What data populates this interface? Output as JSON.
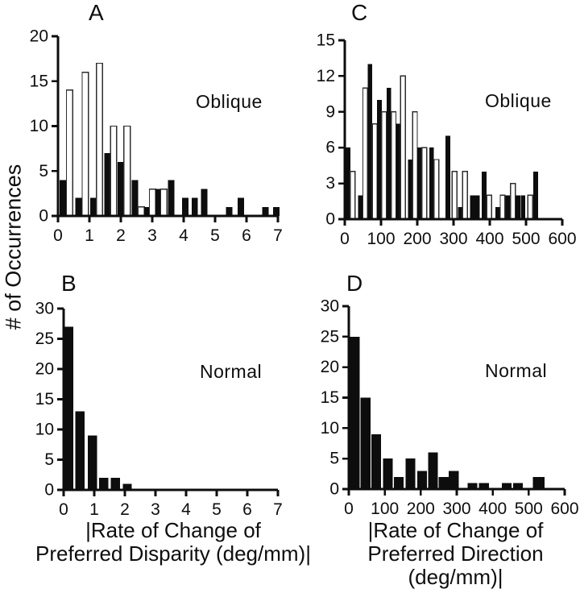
{
  "figure": {
    "y_axis_label": "# of Occurrences",
    "colors": {
      "bar_black": "#0d0d0d",
      "bar_white_fill": "#ffffff",
      "bar_white_outline": "#2e2e2e",
      "axis": "#0d0d0d",
      "background": "#ffffff"
    }
  },
  "chart_data": [
    {
      "type": "bar",
      "panel_label": "A",
      "condition": "Oblique",
      "xlim": [
        0,
        7
      ],
      "xticks": [
        0,
        1,
        2,
        3,
        4,
        5,
        6,
        7
      ],
      "ylim": [
        0,
        20
      ],
      "yticks": [
        0,
        5,
        10,
        15,
        20
      ],
      "bar_width_units": 0.2,
      "grid": false,
      "bars": [
        {
          "x": 0.05,
          "h": 4,
          "fill": "black"
        },
        {
          "x": 0.27,
          "h": 14,
          "fill": "white"
        },
        {
          "x": 0.55,
          "h": 2,
          "fill": "black"
        },
        {
          "x": 0.77,
          "h": 16,
          "fill": "white"
        },
        {
          "x": 1.02,
          "h": 2,
          "fill": "black"
        },
        {
          "x": 1.22,
          "h": 17,
          "fill": "white"
        },
        {
          "x": 1.47,
          "h": 7,
          "fill": "black"
        },
        {
          "x": 1.67,
          "h": 10,
          "fill": "white"
        },
        {
          "x": 1.9,
          "h": 6,
          "fill": "black"
        },
        {
          "x": 2.1,
          "h": 10,
          "fill": "white"
        },
        {
          "x": 2.35,
          "h": 4,
          "fill": "black"
        },
        {
          "x": 2.55,
          "h": 1,
          "fill": "white"
        },
        {
          "x": 2.73,
          "h": 1,
          "fill": "black"
        },
        {
          "x": 2.91,
          "h": 3,
          "fill": "white"
        },
        {
          "x": 3.09,
          "h": 3,
          "fill": "black"
        },
        {
          "x": 3.27,
          "h": 3,
          "fill": "white"
        },
        {
          "x": 3.5,
          "h": 4,
          "fill": "black"
        },
        {
          "x": 3.95,
          "h": 2,
          "fill": "black"
        },
        {
          "x": 4.25,
          "h": 2,
          "fill": "black"
        },
        {
          "x": 4.55,
          "h": 3,
          "fill": "black"
        },
        {
          "x": 5.35,
          "h": 1,
          "fill": "black"
        },
        {
          "x": 5.72,
          "h": 2,
          "fill": "black"
        },
        {
          "x": 6.5,
          "h": 1,
          "fill": "black"
        },
        {
          "x": 6.85,
          "h": 1,
          "fill": "black"
        }
      ]
    },
    {
      "type": "bar",
      "panel_label": "B",
      "condition": "Normal",
      "xlabel_lines": [
        "|Rate of Change of",
        "Preferred Disparity (deg/mm)|"
      ],
      "xlim": [
        0,
        7
      ],
      "xticks": [
        0,
        1,
        2,
        3,
        4,
        5,
        6,
        7
      ],
      "ylim": [
        0,
        30
      ],
      "yticks": [
        0,
        5,
        10,
        15,
        20,
        25,
        30
      ],
      "bar_width_units": 0.3,
      "grid": false,
      "bars": [
        {
          "x": 0.02,
          "h": 27,
          "fill": "black"
        },
        {
          "x": 0.38,
          "h": 13,
          "fill": "black"
        },
        {
          "x": 0.79,
          "h": 9,
          "fill": "black"
        },
        {
          "x": 1.16,
          "h": 2,
          "fill": "black"
        },
        {
          "x": 1.54,
          "h": 2,
          "fill": "black"
        },
        {
          "x": 1.93,
          "h": 1,
          "fill": "black"
        }
      ]
    },
    {
      "type": "bar",
      "panel_label": "C",
      "condition": "Oblique",
      "xlim": [
        0,
        600
      ],
      "xticks": [
        0,
        100,
        200,
        300,
        400,
        500,
        600
      ],
      "ylim": [
        0,
        15
      ],
      "yticks": [
        0,
        3,
        6,
        9,
        12,
        15
      ],
      "bar_width_units": 13,
      "grid": false,
      "bars": [
        {
          "x": 2,
          "h": 6,
          "fill": "black"
        },
        {
          "x": 15,
          "h": 4,
          "fill": "white"
        },
        {
          "x": 37,
          "h": 2,
          "fill": "black"
        },
        {
          "x": 50,
          "h": 11,
          "fill": "white"
        },
        {
          "x": 63,
          "h": 13,
          "fill": "black"
        },
        {
          "x": 76,
          "h": 8,
          "fill": "white"
        },
        {
          "x": 89,
          "h": 10,
          "fill": "black"
        },
        {
          "x": 102,
          "h": 9,
          "fill": "white"
        },
        {
          "x": 115,
          "h": 11,
          "fill": "black"
        },
        {
          "x": 128,
          "h": 9,
          "fill": "white"
        },
        {
          "x": 141,
          "h": 8,
          "fill": "black"
        },
        {
          "x": 154,
          "h": 12,
          "fill": "white"
        },
        {
          "x": 174,
          "h": 5,
          "fill": "black"
        },
        {
          "x": 187,
          "h": 9,
          "fill": "white"
        },
        {
          "x": 200,
          "h": 6,
          "fill": "black"
        },
        {
          "x": 213,
          "h": 6,
          "fill": "white"
        },
        {
          "x": 233,
          "h": 6,
          "fill": "black"
        },
        {
          "x": 246,
          "h": 5,
          "fill": "white"
        },
        {
          "x": 278,
          "h": 7,
          "fill": "black"
        },
        {
          "x": 296,
          "h": 4,
          "fill": "white"
        },
        {
          "x": 312,
          "h": 1,
          "fill": "black"
        },
        {
          "x": 325,
          "h": 4,
          "fill": "white"
        },
        {
          "x": 346,
          "h": 2,
          "fill": "black"
        },
        {
          "x": 359,
          "h": 2,
          "fill": "black"
        },
        {
          "x": 378,
          "h": 4,
          "fill": "black"
        },
        {
          "x": 392,
          "h": 2,
          "fill": "white"
        },
        {
          "x": 415,
          "h": 1,
          "fill": "black"
        },
        {
          "x": 429,
          "h": 2,
          "fill": "white"
        },
        {
          "x": 443,
          "h": 2,
          "fill": "black"
        },
        {
          "x": 457,
          "h": 3,
          "fill": "white"
        },
        {
          "x": 471,
          "h": 2,
          "fill": "black"
        },
        {
          "x": 485,
          "h": 2,
          "fill": "black"
        },
        {
          "x": 505,
          "h": 2,
          "fill": "white"
        },
        {
          "x": 520,
          "h": 4,
          "fill": "black"
        }
      ]
    },
    {
      "type": "bar",
      "panel_label": "D",
      "condition": "Normal",
      "xlabel_lines": [
        "|Rate of Change of",
        "Preferred Direction (deg/mm)|"
      ],
      "xlim": [
        0,
        600
      ],
      "xticks": [
        0,
        100,
        200,
        300,
        400,
        500,
        600
      ],
      "ylim": [
        0,
        30
      ],
      "yticks": [
        0,
        5,
        10,
        15,
        20,
        25,
        30
      ],
      "bar_width_units": 27,
      "grid": false,
      "bars": [
        {
          "x": 3,
          "h": 25,
          "fill": "black"
        },
        {
          "x": 33,
          "h": 15,
          "fill": "black"
        },
        {
          "x": 63,
          "h": 9,
          "fill": "black"
        },
        {
          "x": 95,
          "h": 5,
          "fill": "black"
        },
        {
          "x": 125,
          "h": 2,
          "fill": "black"
        },
        {
          "x": 158,
          "h": 5,
          "fill": "black"
        },
        {
          "x": 190,
          "h": 3,
          "fill": "black"
        },
        {
          "x": 220,
          "h": 6,
          "fill": "black"
        },
        {
          "x": 250,
          "h": 2,
          "fill": "black"
        },
        {
          "x": 278,
          "h": 3,
          "fill": "black"
        },
        {
          "x": 330,
          "h": 1,
          "fill": "black"
        },
        {
          "x": 362,
          "h": 1,
          "fill": "black"
        },
        {
          "x": 425,
          "h": 1,
          "fill": "black"
        },
        {
          "x": 457,
          "h": 1,
          "fill": "black"
        },
        {
          "x": 512,
          "h": 2,
          "fill": "black",
          "w": 32
        }
      ]
    }
  ]
}
